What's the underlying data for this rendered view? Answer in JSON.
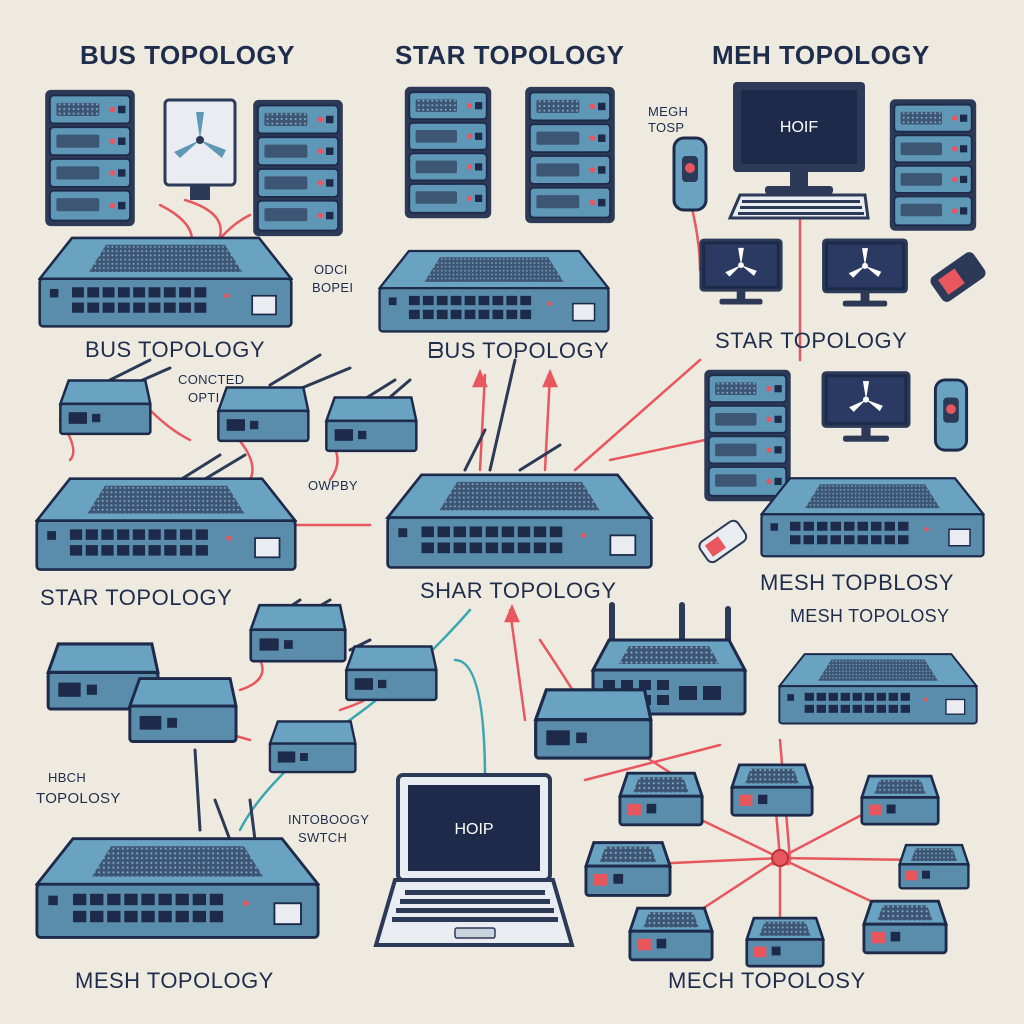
{
  "labels": {
    "t1": "BUS TOPOLOGY",
    "t2": "STAR TOPOLOGY",
    "t3": "MEH TOPOLOGY",
    "l1": "BUS TOPOLOGY",
    "l2": "ᗷUS TOPOLOGY",
    "l3": "STAR TOPOLOGY",
    "l4": "STAR TOPOLOGY",
    "l5": "SHAR TOPOLOGY",
    "l6": "MESH TOPBLOSY",
    "l7": "MESH  TOPOLOSY",
    "l8": "MESH TOPOLOGY",
    "l9": "MECH TOPOLOSY",
    "s1a": "MEGH",
    "s1b": "TOSP",
    "s2a": "ODCI",
    "s2b": "BOPEI",
    "s3a": "CONCTED",
    "s3b": "OPTI",
    "s4": "OWPBY",
    "s5a": "HBCH",
    "s5b": "TOPOLOSY",
    "s6a": "INTOBOOGY",
    "s6b": "SWTCH"
  },
  "screens": {
    "monitor_top": "HOIF",
    "laptop": "HOIP"
  },
  "colors": {
    "background": "#efeae0",
    "device_blue": "#5f97b6",
    "device_dark": "#2c3a57",
    "screen_navy": "#1e2a4a",
    "cable_red": "#e8565e",
    "cable_teal": "#3aa6b0",
    "label_navy": "#1f2d4d"
  },
  "icons": [
    "server-rack-icon",
    "network-switch-icon",
    "adapter-icon",
    "monitor-icon",
    "laptop-icon",
    "router-icon",
    "fan-display-icon",
    "phone-icon",
    "keyboard-icon"
  ]
}
